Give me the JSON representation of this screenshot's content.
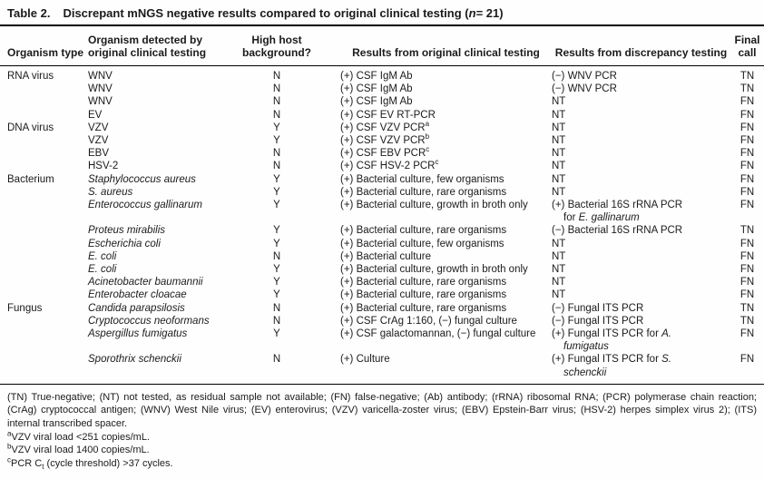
{
  "title": {
    "label": "Table 2.",
    "pre": "Discrepant mNGS negative results compared to original clinical testing (",
    "n": "n",
    "post": "= 21)"
  },
  "columns": [
    "Organism type",
    "Organism detected by original clinical testing",
    "High host background?",
    "Results from original clinical testing",
    "Results from discrepancy testing",
    "Final call"
  ],
  "table": {
    "rows": [
      {
        "group": "RNA virus",
        "org": [
          {
            "t": "WNV"
          }
        ],
        "host": "N",
        "orig": [
          {
            "t": "(+) CSF IgM Ab"
          }
        ],
        "disc": [
          [
            {
              "t": "(−) WNV PCR"
            }
          ]
        ],
        "call": "TN"
      },
      {
        "group": "",
        "org": [
          {
            "t": "WNV"
          }
        ],
        "host": "N",
        "orig": [
          {
            "t": "(+) CSF IgM Ab"
          }
        ],
        "disc": [
          [
            {
              "t": "(−) WNV PCR"
            }
          ]
        ],
        "call": "TN"
      },
      {
        "group": "",
        "org": [
          {
            "t": "WNV"
          }
        ],
        "host": "N",
        "orig": [
          {
            "t": "(+) CSF IgM Ab"
          }
        ],
        "disc": [
          [
            {
              "t": "NT"
            }
          ]
        ],
        "call": "FN"
      },
      {
        "group": "",
        "org": [
          {
            "t": "EV"
          }
        ],
        "host": "N",
        "orig": [
          {
            "t": "(+) CSF EV RT-PCR"
          }
        ],
        "disc": [
          [
            {
              "t": "NT"
            }
          ]
        ],
        "call": "FN"
      },
      {
        "group": "DNA virus",
        "org": [
          {
            "t": "VZV"
          }
        ],
        "host": "Y",
        "orig": [
          {
            "t": "(+) CSF VZV PCR"
          },
          {
            "t": "a",
            "s": "sup"
          }
        ],
        "disc": [
          [
            {
              "t": "NT"
            }
          ]
        ],
        "call": "FN"
      },
      {
        "group": "",
        "org": [
          {
            "t": "VZV"
          }
        ],
        "host": "Y",
        "orig": [
          {
            "t": "(+) CSF VZV PCR"
          },
          {
            "t": "b",
            "s": "sup"
          }
        ],
        "disc": [
          [
            {
              "t": "NT"
            }
          ]
        ],
        "call": "FN"
      },
      {
        "group": "",
        "org": [
          {
            "t": "EBV"
          }
        ],
        "host": "N",
        "orig": [
          {
            "t": "(+) CSF EBV PCR"
          },
          {
            "t": "c",
            "s": "sup"
          }
        ],
        "disc": [
          [
            {
              "t": "NT"
            }
          ]
        ],
        "call": "FN"
      },
      {
        "group": "",
        "org": [
          {
            "t": "HSV-2"
          }
        ],
        "host": "N",
        "orig": [
          {
            "t": "(+) CSF HSV-2 PCR"
          },
          {
            "t": "c",
            "s": "sup"
          }
        ],
        "disc": [
          [
            {
              "t": "NT"
            }
          ]
        ],
        "call": "FN"
      },
      {
        "group": "Bacterium",
        "org": [
          {
            "t": "Staphylococcus aureus",
            "i": true
          }
        ],
        "host": "Y",
        "orig": [
          {
            "t": "(+) Bacterial culture, few organisms"
          }
        ],
        "disc": [
          [
            {
              "t": "NT"
            }
          ]
        ],
        "call": "FN"
      },
      {
        "group": "",
        "org": [
          {
            "t": "S. aureus",
            "i": true
          }
        ],
        "host": "Y",
        "orig": [
          {
            "t": "(+) Bacterial culture, rare organisms"
          }
        ],
        "disc": [
          [
            {
              "t": "NT"
            }
          ]
        ],
        "call": "FN"
      },
      {
        "group": "",
        "org": [
          {
            "t": "Enterococcus gallinarum",
            "i": true
          }
        ],
        "host": "Y",
        "orig": [
          {
            "t": "(+) Bacterial culture, growth in broth only"
          }
        ],
        "disc": [
          [
            {
              "t": "(+) Bacterial 16S rRNA PCR"
            }
          ],
          [
            {
              "t": "for "
            },
            {
              "t": "E. gallinarum",
              "i": true
            }
          ]
        ],
        "call": "FN"
      },
      {
        "group": "",
        "org": [
          {
            "t": "Proteus mirabilis",
            "i": true
          }
        ],
        "host": "Y",
        "orig": [
          {
            "t": "(+) Bacterial culture, rare organisms"
          }
        ],
        "disc": [
          [
            {
              "t": "(−) Bacterial 16S rRNA PCR"
            }
          ]
        ],
        "call": "TN"
      },
      {
        "group": "",
        "org": [
          {
            "t": "Escherichia coli",
            "i": true
          }
        ],
        "host": "Y",
        "orig": [
          {
            "t": "(+) Bacterial culture, few organisms"
          }
        ],
        "disc": [
          [
            {
              "t": "NT"
            }
          ]
        ],
        "call": "FN"
      },
      {
        "group": "",
        "org": [
          {
            "t": "E. coli",
            "i": true
          }
        ],
        "host": "N",
        "orig": [
          {
            "t": "(+) Bacterial culture"
          }
        ],
        "disc": [
          [
            {
              "t": "NT"
            }
          ]
        ],
        "call": "FN"
      },
      {
        "group": "",
        "org": [
          {
            "t": "E. coli",
            "i": true
          }
        ],
        "host": "Y",
        "orig": [
          {
            "t": "(+) Bacterial culture, growth in broth only"
          }
        ],
        "disc": [
          [
            {
              "t": "NT"
            }
          ]
        ],
        "call": "FN"
      },
      {
        "group": "",
        "org": [
          {
            "t": "Acinetobacter baumannii",
            "i": true
          }
        ],
        "host": "Y",
        "orig": [
          {
            "t": "(+) Bacterial culture, rare organisms"
          }
        ],
        "disc": [
          [
            {
              "t": "NT"
            }
          ]
        ],
        "call": "FN"
      },
      {
        "group": "",
        "org": [
          {
            "t": "Enterobacter cloacae",
            "i": true
          }
        ],
        "host": "Y",
        "orig": [
          {
            "t": "(+) Bacterial culture, rare organisms"
          }
        ],
        "disc": [
          [
            {
              "t": "NT"
            }
          ]
        ],
        "call": "FN"
      },
      {
        "group": "Fungus",
        "org": [
          {
            "t": "Candida parapsilosis",
            "i": true
          }
        ],
        "host": "N",
        "orig": [
          {
            "t": "(+) Bacterial culture, rare organisms"
          }
        ],
        "disc": [
          [
            {
              "t": "(−) Fungal ITS PCR"
            }
          ]
        ],
        "call": "TN"
      },
      {
        "group": "",
        "org": [
          {
            "t": "Cryptococcus neoformans",
            "i": true
          }
        ],
        "host": "N",
        "orig": [
          {
            "t": "(+) CSF CrAg 1:160, (−) fungal culture"
          }
        ],
        "disc": [
          [
            {
              "t": "(−) Fungal ITS PCR"
            }
          ]
        ],
        "call": "TN"
      },
      {
        "group": "",
        "org": [
          {
            "t": "Aspergillus fumigatus",
            "i": true
          }
        ],
        "host": "Y",
        "orig": [
          {
            "t": "(+) CSF galactomannan, (−) fungal culture"
          }
        ],
        "disc": [
          [
            {
              "t": "(+) Fungal ITS PCR for "
            },
            {
              "t": "A.",
              "i": true
            }
          ],
          [
            {
              "t": "fumigatus",
              "i": true
            }
          ]
        ],
        "call": "FN"
      },
      {
        "group": "",
        "org": [
          {
            "t": "Sporothrix schenckii",
            "i": true
          }
        ],
        "host": "N",
        "orig": [
          {
            "t": "(+) Culture"
          }
        ],
        "disc": [
          [
            {
              "t": "(+) Fungal ITS PCR for "
            },
            {
              "t": "S.",
              "i": true
            }
          ],
          [
            {
              "t": "schenckii",
              "i": true
            }
          ]
        ],
        "call": "FN"
      }
    ]
  },
  "footnotes": {
    "legend": "(TN) True-negative; (NT) not tested, as residual sample not available; (FN) false-negative; (Ab) antibody; (rRNA) ribosomal RNA; (PCR) polymerase chain reaction; (CrAg) cryptococcal antigen; (WNV) West Nile virus; (EV) enterovirus; (VZV) varicella-zoster virus; (EBV) Epstein-Barr virus; (HSV-2) herpes simplex virus 2); (ITS) internal transcribed spacer.",
    "notes": [
      {
        "marker": "a",
        "segments": [
          {
            "t": "VZV viral load <251 copies/mL."
          }
        ]
      },
      {
        "marker": "b",
        "segments": [
          {
            "t": "VZV viral load 1400 copies/mL."
          }
        ]
      },
      {
        "marker": "c",
        "segments": [
          {
            "t": "PCR C"
          },
          {
            "t": "t",
            "s": "sub"
          },
          {
            "t": " (cycle threshold) >37 cycles."
          }
        ]
      }
    ]
  }
}
